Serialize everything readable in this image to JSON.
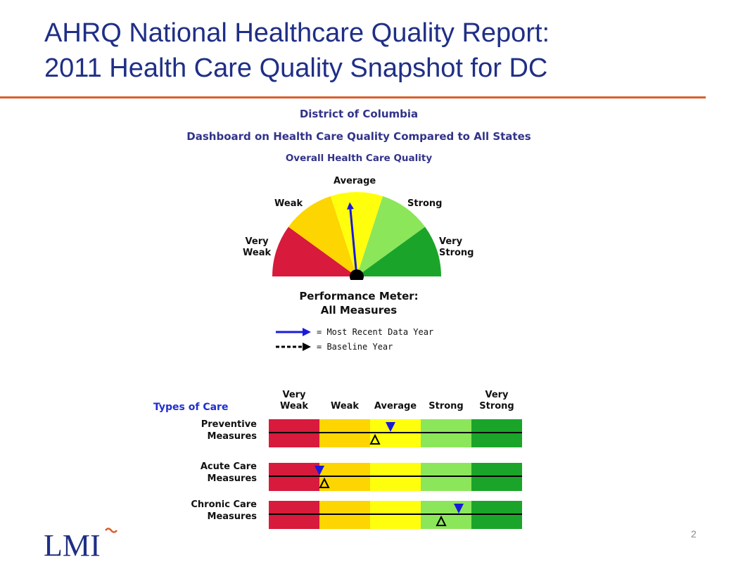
{
  "slide": {
    "title_line1": "AHRQ National Healthcare Quality Report:",
    "title_line2": "2011 Health Care Quality Snapshot for DC",
    "page_number": "2",
    "logo_text": "LMI"
  },
  "dashboard": {
    "region": "District of Columbia",
    "title": "Dashboard on Health Care Quality Compared to All States",
    "subtitle": "Overall Health Care Quality",
    "gauge_labels": {
      "very_weak_1": "Very",
      "very_weak_2": "Weak",
      "weak": "Weak",
      "average": "Average",
      "strong": "Strong",
      "very_strong_1": "Very",
      "very_strong_2": "Strong"
    },
    "meter_caption_1": "Performance Meter:",
    "meter_caption_2": "All Measures",
    "legend": {
      "recent": "= Most Recent Data Year",
      "baseline": "= Baseline Year"
    },
    "colors": {
      "very_weak": "#d81a3c",
      "weak": "#fdd500",
      "average": "#ffff0d",
      "strong": "#8ce65a",
      "very_strong": "#1aa52a",
      "needle_recent": "#1a1adc",
      "title": "#1f2f86",
      "rule": "#d95f2b"
    },
    "overall_needle_level": 0.47
  },
  "types_of_care": {
    "title": "Types of Care",
    "columns": [
      "Very|Weak",
      "Weak",
      "Average",
      "Strong",
      "Very|Strong"
    ],
    "col_head": {
      "very_weak_1": "Very",
      "very_weak_2": "Weak",
      "weak": "Weak",
      "average": "Average",
      "strong": "Strong",
      "very_strong_1": "Very",
      "very_strong_2": "Strong"
    },
    "rows": [
      {
        "label_1": "Preventive",
        "label_2": "Measures",
        "recent_level": 0.48,
        "baseline_level": 0.42
      },
      {
        "label_1": "Acute Care",
        "label_2": "Measures",
        "recent_level": 0.2,
        "baseline_level": 0.22
      },
      {
        "label_1": "Chronic Care",
        "label_2": "Measures",
        "recent_level": 0.75,
        "baseline_level": 0.68
      }
    ]
  }
}
